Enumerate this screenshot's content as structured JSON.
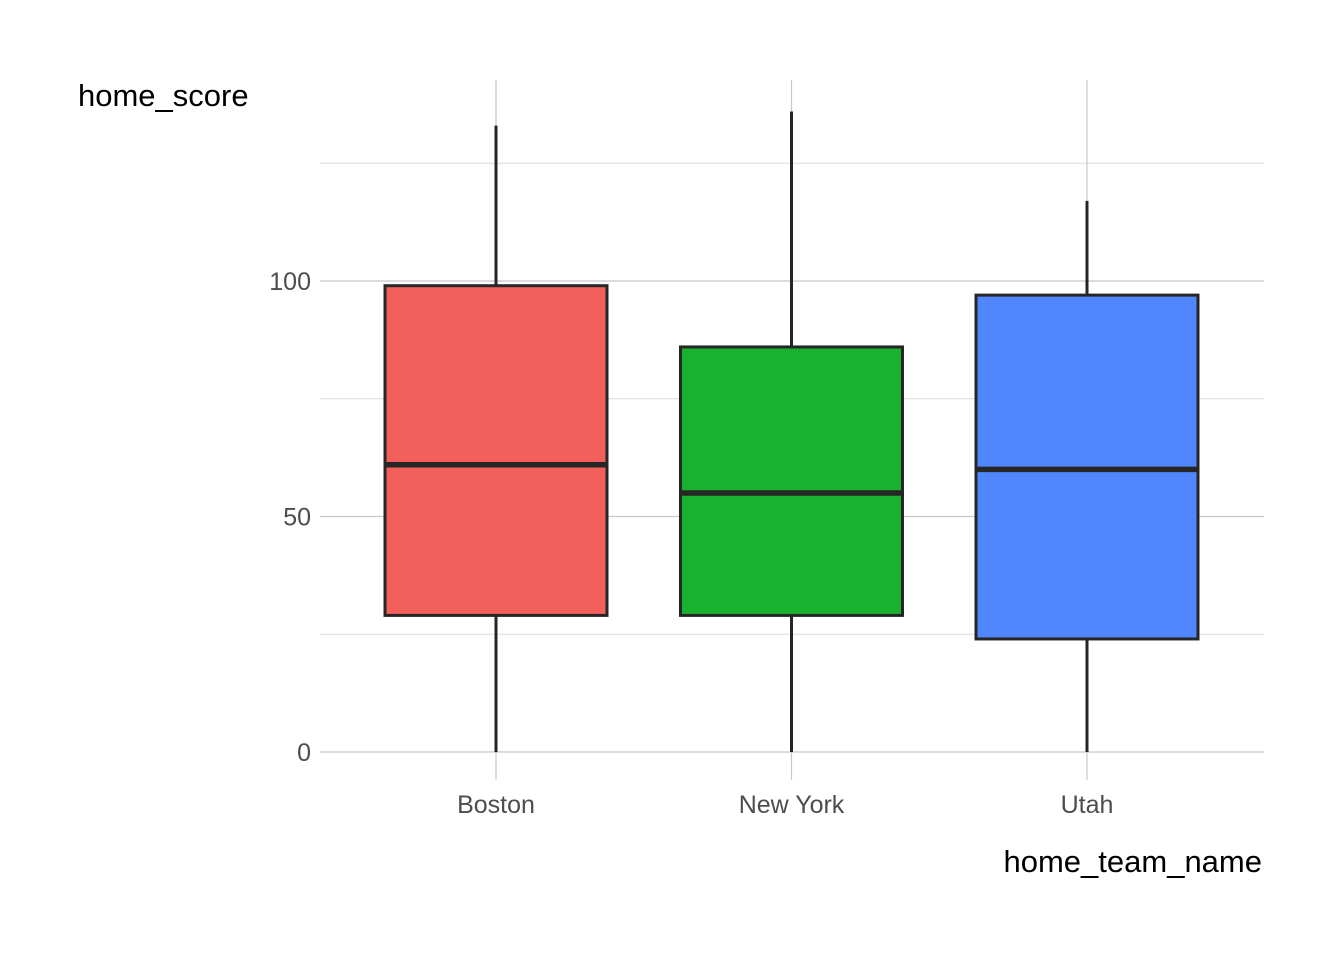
{
  "chart_data": {
    "type": "boxplot",
    "title": "",
    "xlabel": "home_team_name",
    "ylabel": "home_score",
    "categories": [
      "Boston",
      "New York",
      "Utah"
    ],
    "boxes": [
      {
        "category": "Boston",
        "min": 0,
        "q1": 29,
        "median": 61,
        "q3": 99,
        "max": 133,
        "color": "#F35F5B"
      },
      {
        "category": "New York",
        "min": 0,
        "q1": 29,
        "median": 55,
        "q3": 86,
        "max": 136,
        "color": "#19B22F"
      },
      {
        "category": "Utah",
        "min": 0,
        "q1": 24,
        "median": 60,
        "q3": 97,
        "max": 117,
        "color": "#5087FF"
      }
    ],
    "ylim": [
      -6,
      143
    ],
    "yticks": [
      0,
      50,
      100
    ],
    "ytick_labels": [
      "0",
      "50",
      "100"
    ],
    "grid": true,
    "legend": "none"
  }
}
